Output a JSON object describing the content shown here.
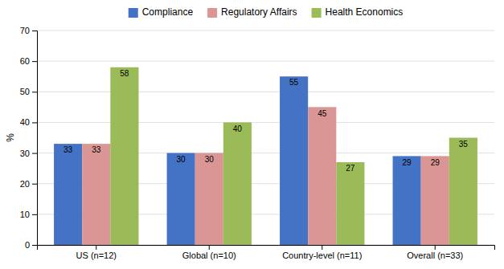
{
  "chart_data": {
    "type": "bar",
    "categories": [
      "US (n=12)",
      "Global (n=10)",
      "Country-level (n=11)",
      "Overall (n=33)"
    ],
    "series": [
      {
        "name": "Compliance",
        "values": [
          33,
          30,
          55,
          29
        ],
        "color": "#4472C4"
      },
      {
        "name": "Regulatory Affairs",
        "values": [
          33,
          30,
          45,
          29
        ],
        "color": "#DA9694"
      },
      {
        "name": "Health Economics",
        "values": [
          58,
          40,
          27,
          35
        ],
        "color": "#9BBB59"
      }
    ],
    "ylabel": "%",
    "ylim": [
      0,
      70
    ],
    "yticks": [
      0,
      10,
      20,
      30,
      40,
      50,
      60,
      70
    ],
    "grid": true,
    "data_labels": true,
    "legend": "top"
  }
}
